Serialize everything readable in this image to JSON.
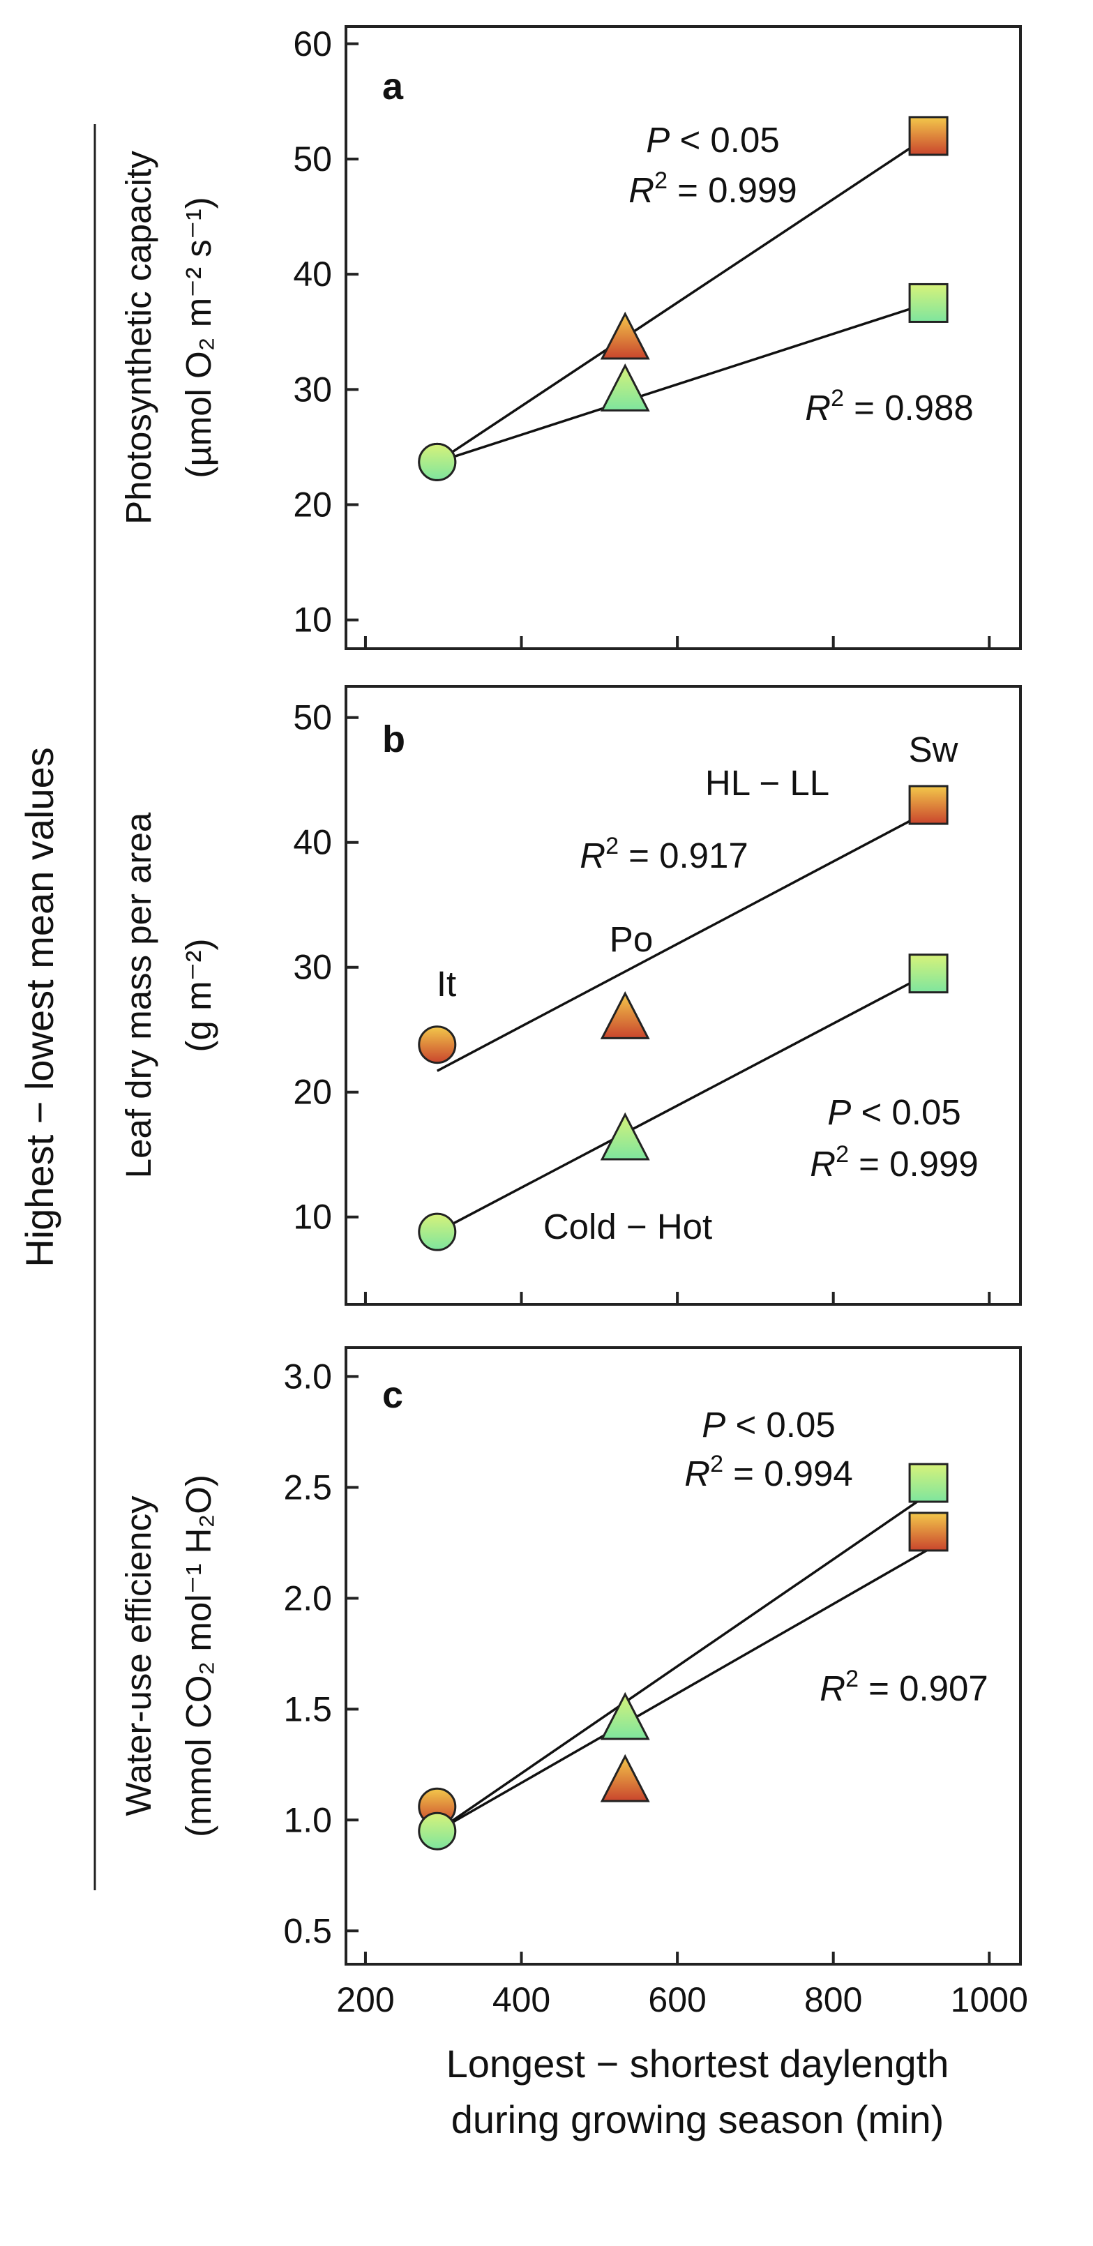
{
  "colors": {
    "cold_hot_gradient": [
      "#d7f27a",
      "#7ee59e"
    ],
    "hl_ll_gradient": [
      "#f3c84b",
      "#c9452d"
    ]
  },
  "shared_labels": {
    "y_group_label": "Highest − lowest mean values",
    "x_label_line1": "Longest − shortest daylength",
    "x_label_line2": "during growing season (min)"
  },
  "chart_data": [
    {
      "type": "scatter",
      "panel": "a",
      "ylabel_line1": "Photosynthetic capacity",
      "ylabel_line2": "(µmol O₂ m⁻² s⁻¹)",
      "xlim": [
        175,
        1040
      ],
      "ylim": [
        7.5,
        61.5
      ],
      "xticks": [
        200,
        400,
        600,
        800,
        1000
      ],
      "yticks": [
        10,
        20,
        30,
        40,
        50,
        60
      ],
      "series": [
        {
          "name": "HL − LL",
          "color": "hl",
          "points": [
            {
              "x": 292,
              "y": 23.7,
              "marker": "circle"
            },
            {
              "x": 533,
              "y": 34.5,
              "marker": "triangle"
            },
            {
              "x": 922,
              "y": 52.0,
              "marker": "square"
            }
          ],
          "fit": {
            "x": [
              292,
              922
            ],
            "y": [
              23.7,
              52.0
            ]
          }
        },
        {
          "name": "Cold − Hot",
          "color": "cold",
          "points": [
            {
              "x": 292,
              "y": 23.7,
              "marker": "circle"
            },
            {
              "x": 533,
              "y": 30.0,
              "marker": "triangle"
            },
            {
              "x": 922,
              "y": 37.5,
              "marker": "square"
            }
          ],
          "fit": {
            "x": [
              292,
              922
            ],
            "y": [
              23.7,
              37.5
            ]
          }
        }
      ],
      "annotations": [
        {
          "kind": "p",
          "text": "< 0.05"
        },
        {
          "kind": "r2",
          "text": " = 0.999"
        },
        {
          "kind": "r2",
          "text": " = 0.988"
        }
      ]
    },
    {
      "type": "scatter",
      "panel": "b",
      "ylabel_line1": "Leaf dry mass per area",
      "ylabel_line2": "(g m⁻²)",
      "xlim": [
        175,
        1040
      ],
      "ylim": [
        3,
        52.5
      ],
      "xticks": [
        200,
        400,
        600,
        800,
        1000
      ],
      "yticks": [
        10,
        20,
        30,
        40,
        50
      ],
      "series": [
        {
          "name": "HL − LL",
          "color": "hl",
          "points": [
            {
              "x": 292,
              "y": 23.8,
              "marker": "circle"
            },
            {
              "x": 533,
              "y": 26.0,
              "marker": "triangle"
            },
            {
              "x": 922,
              "y": 43.0,
              "marker": "square"
            }
          ],
          "fit": {
            "x": [
              292,
              922
            ],
            "y": [
              21.7,
              42.5
            ]
          }
        },
        {
          "name": "Cold − Hot",
          "color": "cold",
          "points": [
            {
              "x": 292,
              "y": 8.8,
              "marker": "circle"
            },
            {
              "x": 533,
              "y": 16.3,
              "marker": "triangle"
            },
            {
              "x": 922,
              "y": 29.5,
              "marker": "square"
            }
          ],
          "fit": {
            "x": [
              292,
              922
            ],
            "y": [
              8.8,
              29.5
            ]
          }
        }
      ],
      "annotations": [
        {
          "kind": "text",
          "text": "Sw"
        },
        {
          "kind": "text",
          "text": "HL − LL"
        },
        {
          "kind": "r2",
          "text": " = 0.917"
        },
        {
          "kind": "text",
          "text": "Po"
        },
        {
          "kind": "text",
          "text": "It"
        },
        {
          "kind": "p",
          "text": "< 0.05"
        },
        {
          "kind": "r2",
          "text": " = 0.999"
        },
        {
          "kind": "text",
          "text": "Cold − Hot"
        }
      ]
    },
    {
      "type": "scatter",
      "panel": "c",
      "ylabel_line1": "Water-use efficiency",
      "ylabel_line2": "(mmol CO₂ mol⁻¹ H₂O)",
      "xlim": [
        175,
        1040
      ],
      "ylim": [
        0.35,
        3.13
      ],
      "xticks": [
        200,
        400,
        600,
        800,
        1000
      ],
      "yticks": [
        "0.5",
        "1.0",
        "1.5",
        "2.0",
        "2.5",
        "3.0"
      ],
      "series": [
        {
          "name": "HL − LL",
          "color": "hl",
          "points": [
            {
              "x": 292,
              "y": 1.06,
              "marker": "circle"
            },
            {
              "x": 533,
              "y": 1.18,
              "marker": "triangle"
            },
            {
              "x": 922,
              "y": 2.3,
              "marker": "square"
            }
          ],
          "fit": {
            "x": [
              292,
              922
            ],
            "y": [
              0.95,
              2.22
            ]
          }
        },
        {
          "name": "Cold − Hot",
          "color": "cold",
          "points": [
            {
              "x": 292,
              "y": 0.95,
              "marker": "circle"
            },
            {
              "x": 533,
              "y": 1.46,
              "marker": "triangle"
            },
            {
              "x": 922,
              "y": 2.52,
              "marker": "square"
            }
          ],
          "fit": {
            "x": [
              292,
              922
            ],
            "y": [
              0.95,
              2.47
            ]
          }
        }
      ],
      "annotations": [
        {
          "kind": "p",
          "text": "< 0.05"
        },
        {
          "kind": "r2",
          "text": " = 0.994"
        },
        {
          "kind": "r2",
          "text": " = 0.907"
        }
      ]
    }
  ]
}
